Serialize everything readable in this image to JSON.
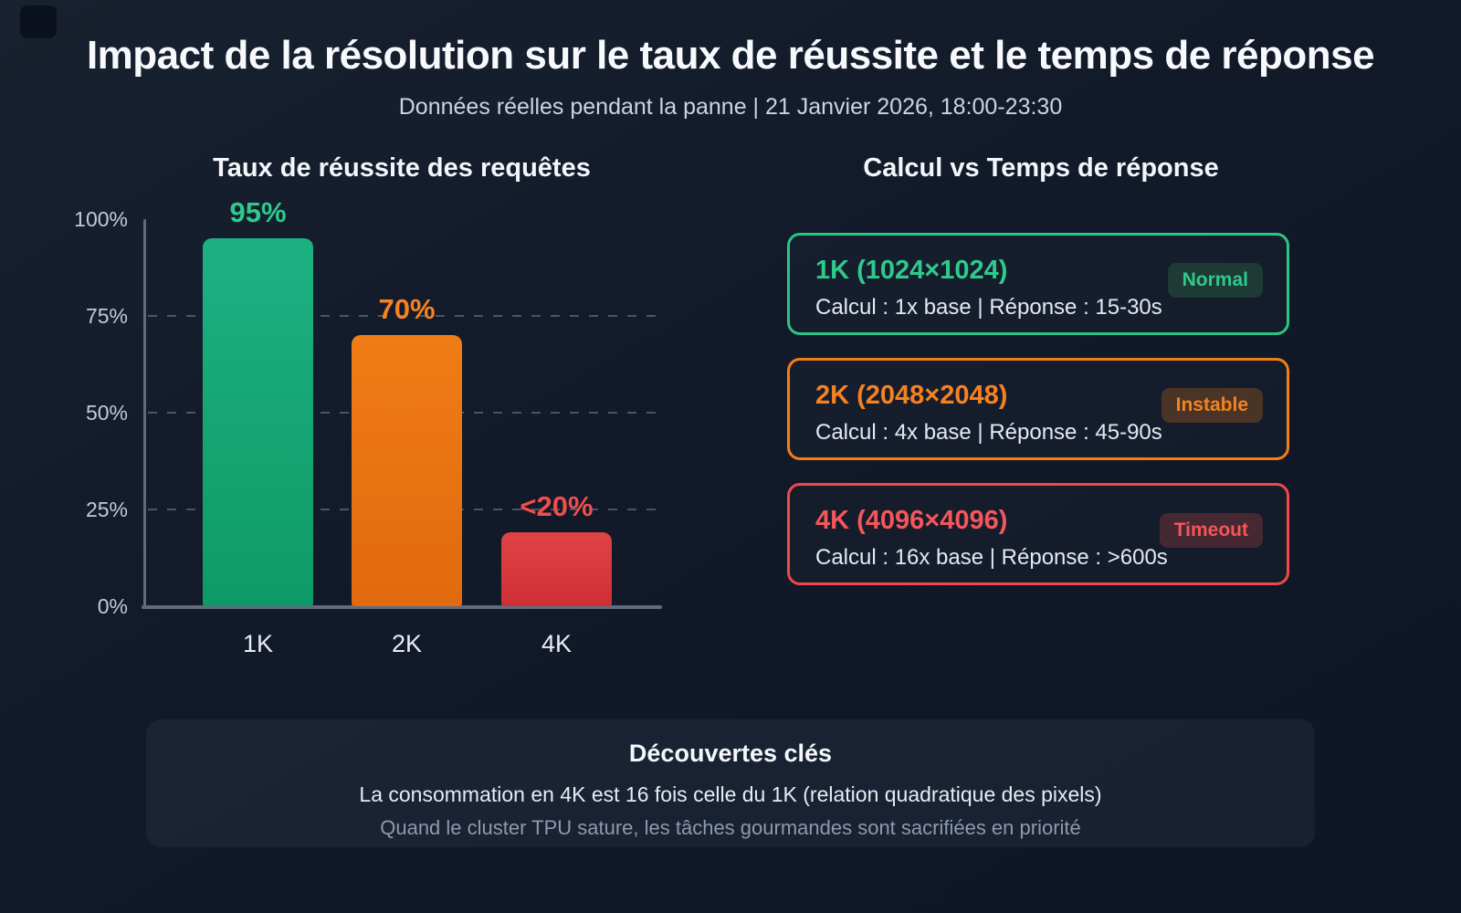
{
  "page": {
    "title": "Impact de la résolution sur le taux de réussite et le temps de réponse",
    "subtitle": "Données réelles pendant la panne | 21 Janvier 2026, 18:00-23:30"
  },
  "chart_data": {
    "type": "bar",
    "title": "Taux de réussite des requêtes",
    "categories": [
      "1K",
      "2K",
      "4K"
    ],
    "values": [
      95,
      70,
      19
    ],
    "value_labels": [
      "95%",
      "70%",
      "<20%"
    ],
    "yticks": [
      "100%",
      "75%",
      "50%",
      "25%",
      "0%"
    ],
    "ylim": [
      0,
      100
    ],
    "grid": "horizontal dashed at 25/50/75",
    "bar_colors": [
      {
        "top": "#1db182",
        "bottom": "#0e9a66"
      },
      {
        "top": "#f07c15",
        "bottom": "#e06a0d"
      },
      {
        "top": "#e04344",
        "bottom": "#ce2f35"
      }
    ],
    "label_colors": [
      "#2fca8b",
      "#f6821f",
      "#f14d4d"
    ]
  },
  "comparison": {
    "title": "Calcul vs Temps de réponse",
    "cards": [
      {
        "title": "1K (1024×1024)",
        "badge": "Normal",
        "detail": "Calcul : 1x base | Réponse : 15-30s",
        "color": "#2fca8b"
      },
      {
        "title": "2K (2048×2048)",
        "badge": "Instable",
        "detail": "Calcul : 4x base | Réponse : 45-90s",
        "color": "#f6821f"
      },
      {
        "title": "4K (4096×4096)",
        "badge": "Timeout",
        "detail": "Calcul : 16x base | Réponse : >600s",
        "color": "#f4565a"
      }
    ]
  },
  "findings": {
    "title": "Découvertes clés",
    "line1": "La consommation en 4K est 16 fois celle du 1K (relation quadratique des pixels)",
    "line2": "Quand le cluster TPU sature, les tâches gourmandes sont sacrifiées en priorité"
  }
}
